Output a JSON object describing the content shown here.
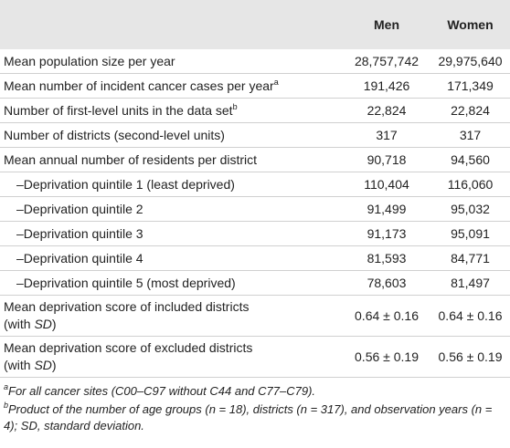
{
  "table": {
    "header": [
      "",
      "Men",
      "Women"
    ],
    "rows": [
      {
        "label": [
          {
            "text": "Mean population size per year"
          }
        ],
        "men": "28,757,742",
        "women": "29,975,640"
      },
      {
        "label": [
          {
            "text": "Mean number of incident cancer cases per year"
          },
          {
            "text": "a",
            "style": "sup"
          }
        ],
        "men": "191,426",
        "women": "171,349"
      },
      {
        "label": [
          {
            "text": "Number of first-level units in the data set"
          },
          {
            "text": "b",
            "style": "sup"
          }
        ],
        "men": "22,824",
        "women": "22,824"
      },
      {
        "label": [
          {
            "text": "Number of districts (second-level units)"
          }
        ],
        "men": "317",
        "women": "317"
      },
      {
        "label": [
          {
            "text": "Mean annual number of residents per district"
          }
        ],
        "men": "90,718",
        "women": "94,560"
      },
      {
        "label": [
          {
            "text": "–Deprivation quintile 1 (least deprived)"
          }
        ],
        "indent": true,
        "men": "110,404",
        "women": "116,060"
      },
      {
        "label": [
          {
            "text": "–Deprivation quintile 2"
          }
        ],
        "indent": true,
        "men": "91,499",
        "women": "95,032"
      },
      {
        "label": [
          {
            "text": "–Deprivation quintile 3"
          }
        ],
        "indent": true,
        "men": "91,173",
        "women": "95,091"
      },
      {
        "label": [
          {
            "text": "–Deprivation quintile 4"
          }
        ],
        "indent": true,
        "men": "81,593",
        "women": "84,771"
      },
      {
        "label": [
          {
            "text": "–Deprivation quintile 5 (most deprived)"
          }
        ],
        "indent": true,
        "men": "78,603",
        "women": "81,497"
      },
      {
        "label": [
          {
            "text": "Mean deprivation score of included districts"
          },
          {
            "text": "(with ",
            "style": "break"
          },
          {
            "text": "SD",
            "style": "italic"
          },
          {
            "text": ")"
          }
        ],
        "men": "0.64 ± 0.16",
        "women": "0.64 ± 0.16"
      },
      {
        "label": [
          {
            "text": "Mean deprivation score of excluded districts"
          },
          {
            "text": "(with ",
            "style": "break"
          },
          {
            "text": "SD",
            "style": "italic"
          },
          {
            "text": ")"
          }
        ],
        "men": "0.56 ± 0.19",
        "women": "0.56 ± 0.19"
      }
    ]
  },
  "footnotes": [
    {
      "marker": "a",
      "text": "For all cancer sites (C00–C97 without C44 and C77–C79)."
    },
    {
      "marker": "b",
      "text": "Product of the number of age groups (n = 18), districts (n = 317), and observation years (n = 4); SD, standard deviation."
    }
  ]
}
